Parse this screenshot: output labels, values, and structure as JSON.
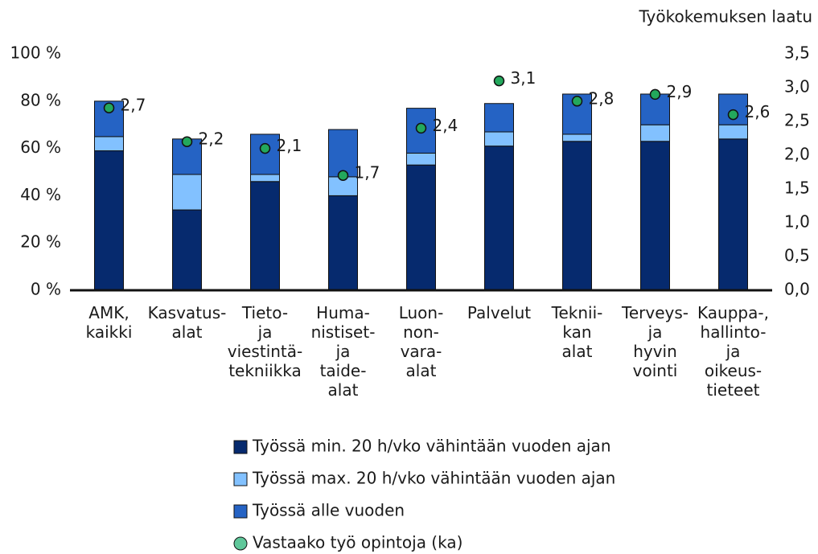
{
  "chart_data": {
    "type": "bar",
    "stacked": true,
    "y2_title": "Työkokemuksen laatu",
    "categories": [
      "AMK,\nkaikki",
      "Kasvatus-\nalat",
      "Tieto-\nja\nviestintä-\ntekniikka",
      "Huma-\nnistiset-\nja\ntaide-\nalat",
      "Luon-\nnon-\nvara-\nalat",
      "Palvelut",
      "Teknii-\nkan\nalat",
      "Terveys-\nja\nhyvin\nvointi",
      "Kauppa-,\nhallinto-\nja\noikeus-\ntieteet"
    ],
    "series": [
      {
        "name": "Työssä min. 20 h/vko vähintään vuoden ajan",
        "color": "#062a6e",
        "values": [
          59,
          34,
          46,
          40,
          53,
          61,
          63,
          63,
          64
        ]
      },
      {
        "name": "Työssä max. 20 h/vko vähintään vuoden ajan",
        "color": "#82c1ff",
        "values": [
          6,
          15,
          3,
          8,
          5,
          6,
          3,
          7,
          6
        ]
      },
      {
        "name": "Työssä alle vuoden",
        "color": "#2563c4",
        "values": [
          15,
          15,
          17,
          20,
          19,
          12,
          17,
          13,
          13
        ]
      },
      {
        "name": "Vastaako työ opintoja (ka)",
        "color": "#23a85c",
        "axis": "y2",
        "values": [
          2.7,
          2.2,
          2.1,
          1.7,
          2.4,
          3.1,
          2.8,
          2.9,
          2.6
        ],
        "value_labels": [
          "2,7",
          "2,2",
          "2,1",
          "1,7",
          "2,4",
          "3,1",
          "2,8",
          "2,9",
          "2,6"
        ]
      }
    ],
    "ylim": [
      0,
      100
    ],
    "yticks": [
      {
        "value": 0,
        "label": "0 %"
      },
      {
        "value": 20,
        "label": "20 %"
      },
      {
        "value": 40,
        "label": "40 %"
      },
      {
        "value": 60,
        "label": "60 %"
      },
      {
        "value": 80,
        "label": "80 %"
      },
      {
        "value": 100,
        "label": "100 %"
      }
    ],
    "y2lim": [
      0,
      3.5
    ],
    "y2ticks": [
      {
        "value": 0,
        "label": "0,0"
      },
      {
        "value": 0.5,
        "label": "0,5"
      },
      {
        "value": 1,
        "label": "1,0"
      },
      {
        "value": 1.5,
        "label": "1,5"
      },
      {
        "value": 2,
        "label": "2,0"
      },
      {
        "value": 2.5,
        "label": "2,5"
      },
      {
        "value": 3,
        "label": "3,0"
      },
      {
        "value": 3.5,
        "label": "3,5"
      }
    ],
    "legend": "bottom"
  }
}
